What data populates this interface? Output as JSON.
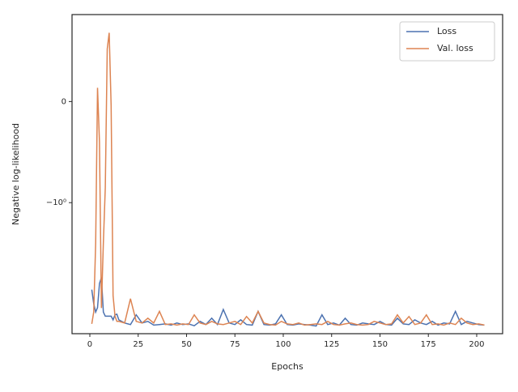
{
  "chart_data": {
    "type": "line",
    "xlabel": "Epochs",
    "ylabel": "Negative log-likelihood",
    "x": [
      1,
      2,
      3,
      4,
      5,
      6,
      7,
      8,
      9,
      10,
      11,
      12,
      13,
      14,
      15,
      18,
      21,
      24,
      27,
      30,
      33,
      36,
      39,
      42,
      45,
      48,
      51,
      54,
      57,
      60,
      63,
      66,
      69,
      72,
      75,
      78,
      81,
      84,
      87,
      90,
      93,
      96,
      99,
      102,
      105,
      108,
      111,
      114,
      117,
      120,
      123,
      126,
      129,
      132,
      135,
      138,
      141,
      144,
      147,
      150,
      153,
      156,
      159,
      162,
      165,
      168,
      171,
      174,
      177,
      180,
      183,
      186,
      189,
      192,
      195,
      198,
      201,
      204
    ],
    "series": [
      {
        "name": "Loss",
        "color": "#4c72b0",
        "values": [
          -1.86,
          -2.0,
          -2.22,
          -2.1,
          -1.8,
          -1.74,
          -2.22,
          -2.34,
          -2.34,
          -2.34,
          -2.34,
          -2.45,
          -2.3,
          -2.28,
          -2.45,
          -2.55,
          -2.6,
          -2.3,
          -2.55,
          -2.5,
          -2.62,
          -2.6,
          -2.58,
          -2.62,
          -2.55,
          -2.6,
          -2.58,
          -2.64,
          -2.5,
          -2.6,
          -2.4,
          -2.6,
          -2.15,
          -2.55,
          -2.6,
          -2.45,
          -2.6,
          -2.62,
          -2.2,
          -2.6,
          -2.62,
          -2.58,
          -2.3,
          -2.6,
          -2.62,
          -2.58,
          -2.6,
          -2.62,
          -2.65,
          -2.3,
          -2.6,
          -2.55,
          -2.62,
          -2.4,
          -2.6,
          -2.62,
          -2.55,
          -2.58,
          -2.6,
          -2.5,
          -2.6,
          -2.62,
          -2.4,
          -2.58,
          -2.6,
          -2.45,
          -2.55,
          -2.6,
          -2.5,
          -2.62,
          -2.55,
          -2.58,
          -2.2,
          -2.6,
          -2.5,
          -2.55,
          -2.6,
          -2.62
        ]
      },
      {
        "name": "Val. loss",
        "color": "#dd8452",
        "values": [
          -2.58,
          -2.22,
          -1.4,
          0.136,
          -0.4,
          -2.11,
          -1.4,
          -0.85,
          0.52,
          0.68,
          -0.04,
          -1.92,
          -2.34,
          -2.5,
          -2.5,
          -2.55,
          -1.95,
          -2.5,
          -2.55,
          -2.4,
          -2.55,
          -2.2,
          -2.6,
          -2.58,
          -2.62,
          -2.58,
          -2.6,
          -2.3,
          -2.55,
          -2.6,
          -2.5,
          -2.58,
          -2.6,
          -2.55,
          -2.5,
          -2.6,
          -2.35,
          -2.55,
          -2.2,
          -2.55,
          -2.6,
          -2.62,
          -2.5,
          -2.58,
          -2.6,
          -2.55,
          -2.62,
          -2.6,
          -2.58,
          -2.6,
          -2.5,
          -2.6,
          -2.62,
          -2.58,
          -2.55,
          -2.6,
          -2.62,
          -2.6,
          -2.5,
          -2.55,
          -2.6,
          -2.58,
          -2.3,
          -2.55,
          -2.35,
          -2.6,
          -2.55,
          -2.3,
          -2.6,
          -2.58,
          -2.62,
          -2.55,
          -2.6,
          -2.4,
          -2.55,
          -2.6,
          -2.58,
          -2.62
        ]
      }
    ],
    "xlim": [
      -9.2,
      213.4
    ],
    "xticks": [
      0,
      25,
      50,
      75,
      100,
      125,
      150,
      175,
      200
    ],
    "ylim": [
      -2.92,
      0.86
    ],
    "yticks": [
      0,
      {
        "value": -1,
        "label": "−10⁰"
      }
    ],
    "yscale": "symlog",
    "linthresh": 2,
    "legend": "upper right"
  }
}
